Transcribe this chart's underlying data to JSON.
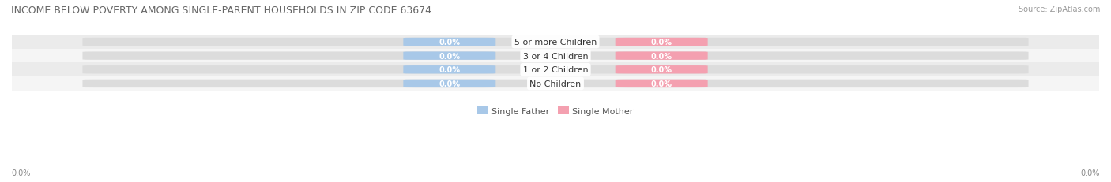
{
  "title": "INCOME BELOW POVERTY AMONG SINGLE-PARENT HOUSEHOLDS IN ZIP CODE 63674",
  "source": "Source: ZipAtlas.com",
  "categories": [
    "No Children",
    "1 or 2 Children",
    "3 or 4 Children",
    "5 or more Children"
  ],
  "father_values": [
    0.0,
    0.0,
    0.0,
    0.0
  ],
  "mother_values": [
    0.0,
    0.0,
    0.0,
    0.0
  ],
  "father_color": "#a8c8e8",
  "mother_color": "#f4a0b0",
  "row_bg_colors": [
    "#f5f5f5",
    "#ebebeb"
  ],
  "bar_bg_color": "#dcdcdc",
  "title_fontsize": 9,
  "source_fontsize": 7,
  "label_fontsize": 7,
  "category_fontsize": 8,
  "legend_fontsize": 8,
  "axis_label_left": "0.0%",
  "axis_label_right": "0.0%",
  "bar_height": 0.55,
  "background_color": "#ffffff"
}
